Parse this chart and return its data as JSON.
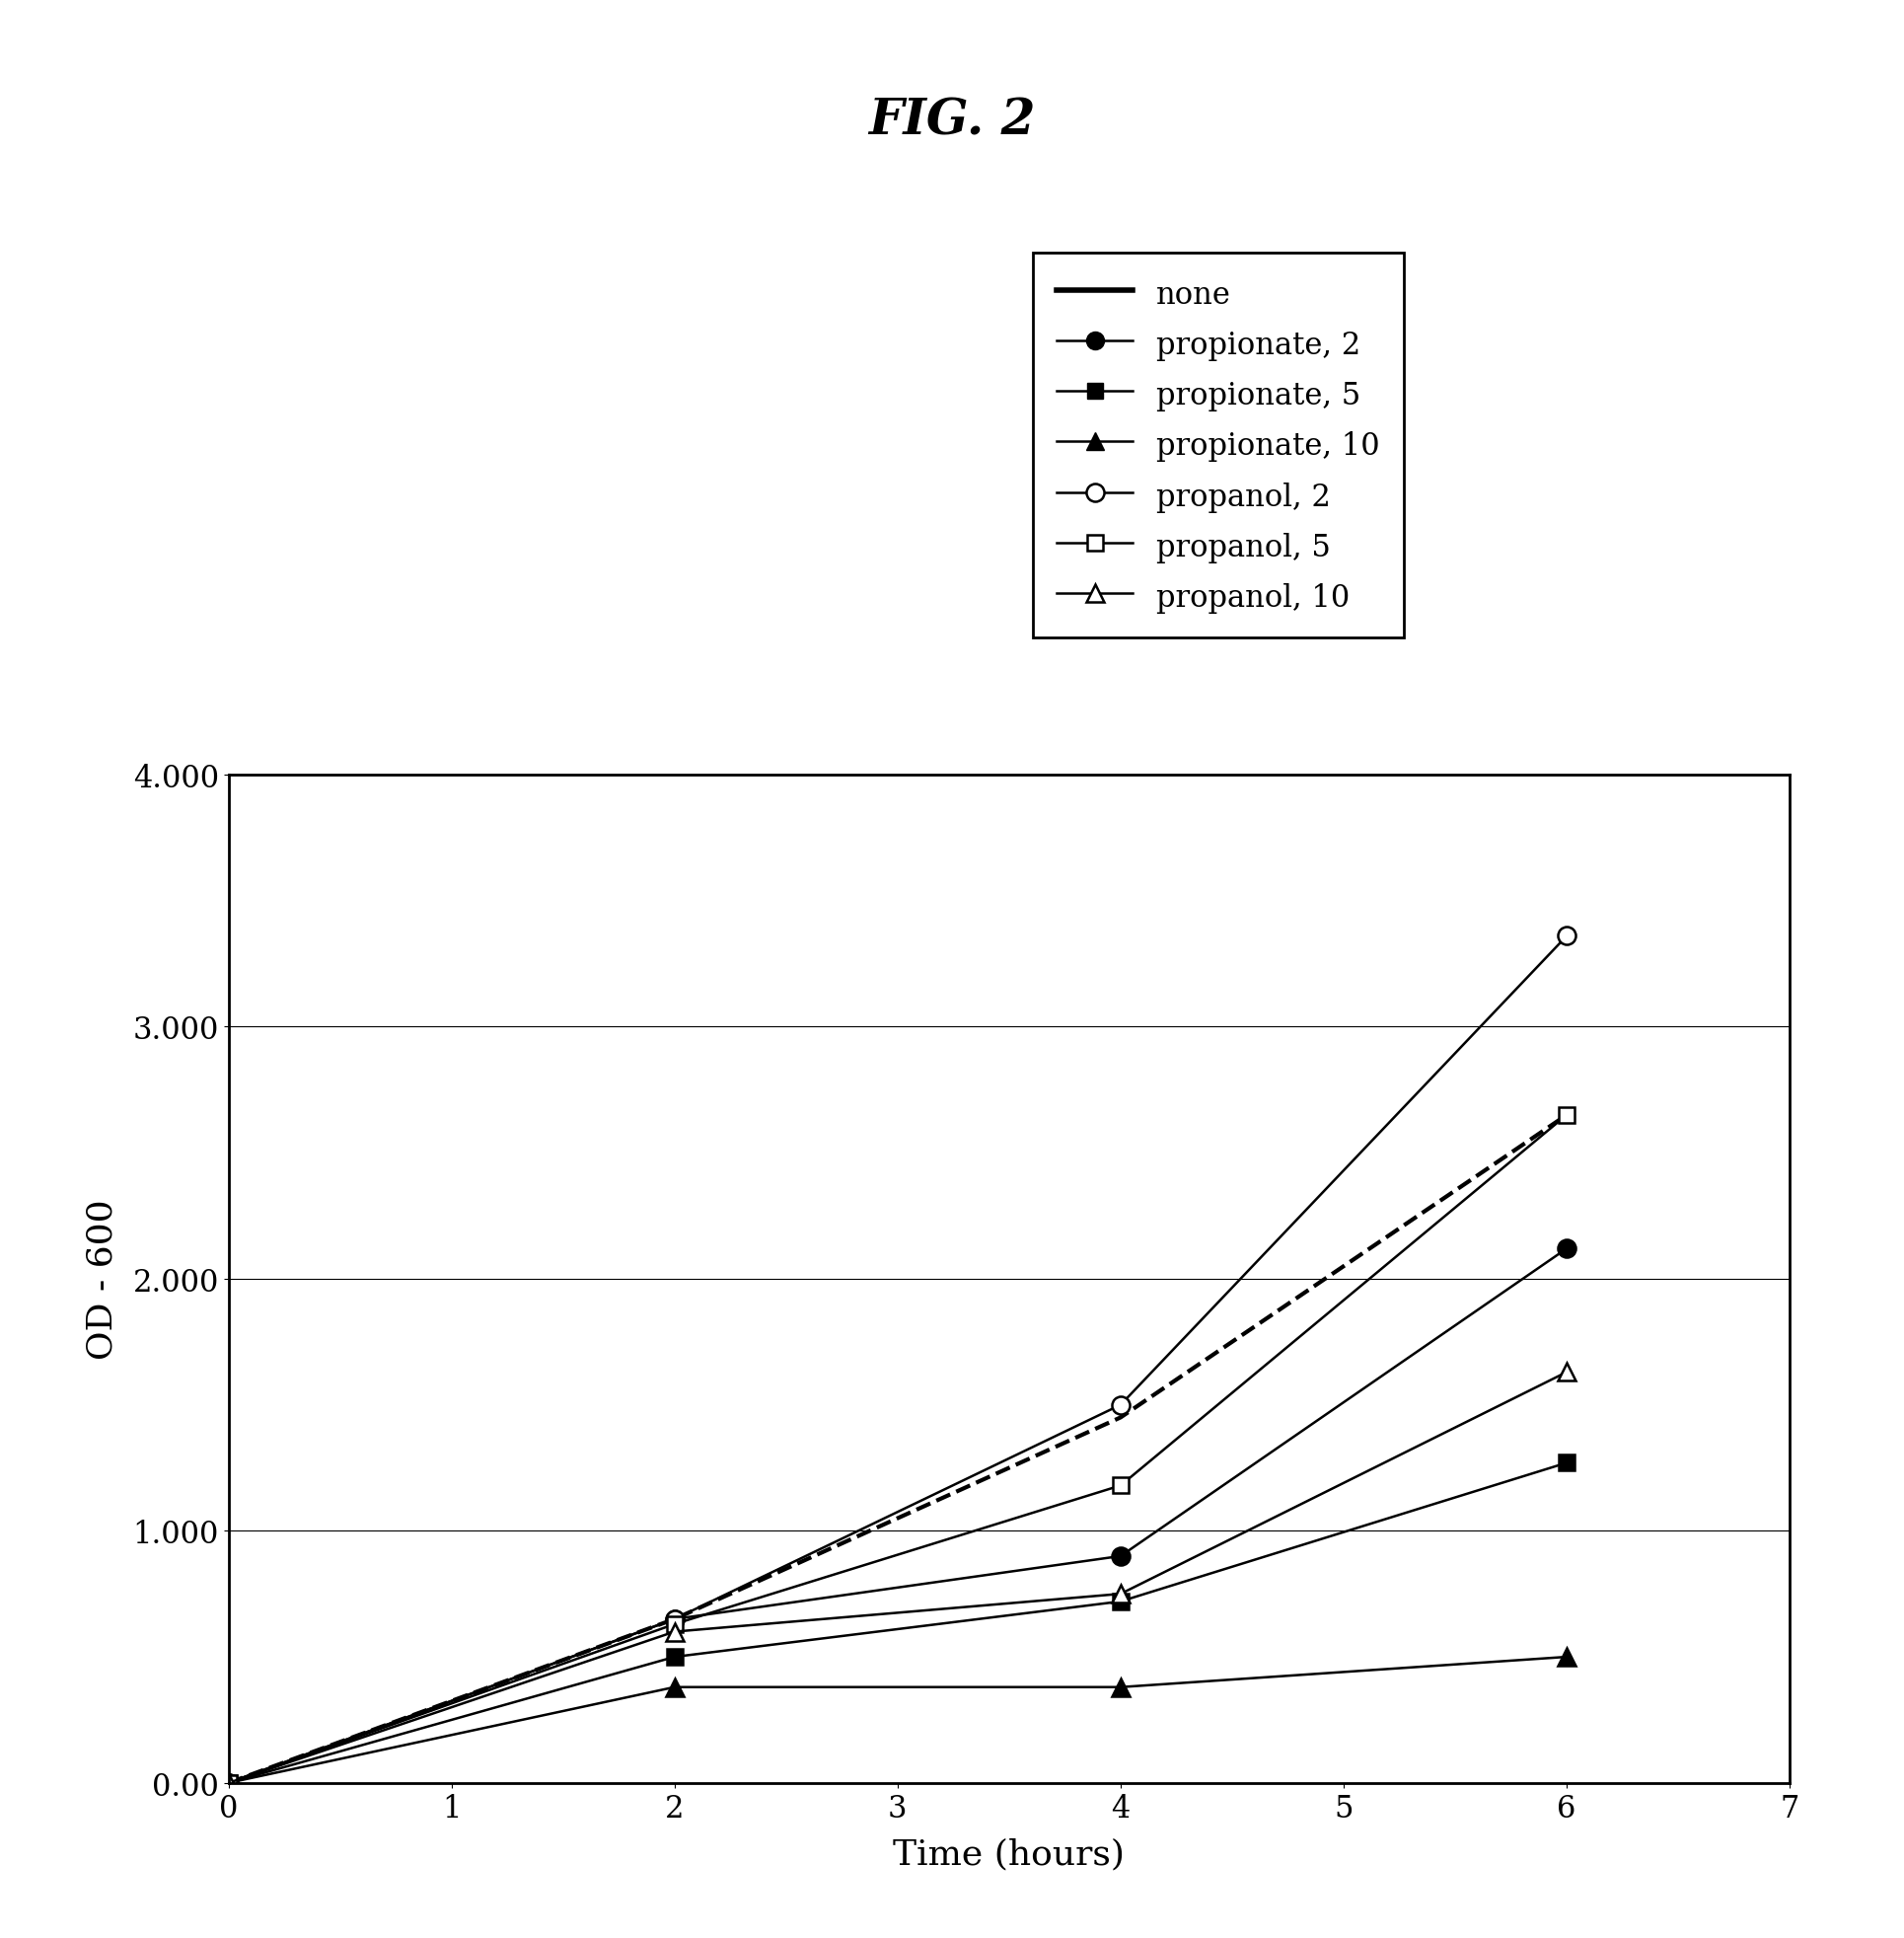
{
  "title": "FIG. 2",
  "xlabel": "Time (hours)",
  "ylabel": "OD - 600",
  "xlim": [
    0,
    7
  ],
  "ylim": [
    0,
    4.0
  ],
  "xticks": [
    0,
    1,
    2,
    3,
    4,
    5,
    6,
    7
  ],
  "yticks": [
    0.0,
    1.0,
    2.0,
    3.0,
    4.0
  ],
  "ytick_labels": [
    "0.00",
    "1.000",
    "2.000",
    "3.000",
    "4.000"
  ],
  "series": [
    {
      "label": "none",
      "x": [
        0,
        2,
        4,
        6
      ],
      "y": [
        0.0,
        0.65,
        1.45,
        2.65
      ],
      "marker": null,
      "linestyle": "--",
      "linewidth": 3.0,
      "color": "#000000",
      "markersize": 0,
      "fillstyle": "full"
    },
    {
      "label": "propionate, 2",
      "x": [
        0,
        2,
        4,
        6
      ],
      "y": [
        0.0,
        0.65,
        0.9,
        2.12
      ],
      "marker": "o",
      "linestyle": "-",
      "linewidth": 1.8,
      "color": "#000000",
      "markersize": 13,
      "fillstyle": "full"
    },
    {
      "label": "propionate, 5",
      "x": [
        0,
        2,
        4,
        6
      ],
      "y": [
        0.0,
        0.5,
        0.72,
        1.27
      ],
      "marker": "s",
      "linestyle": "-",
      "linewidth": 1.8,
      "color": "#000000",
      "markersize": 12,
      "fillstyle": "full"
    },
    {
      "label": "propionate, 10",
      "x": [
        0,
        2,
        4,
        6
      ],
      "y": [
        0.0,
        0.38,
        0.38,
        0.5
      ],
      "marker": "^",
      "linestyle": "-",
      "linewidth": 1.8,
      "color": "#000000",
      "markersize": 13,
      "fillstyle": "full"
    },
    {
      "label": "propanol, 2",
      "x": [
        0,
        2,
        4,
        6
      ],
      "y": [
        0.0,
        0.65,
        1.5,
        3.36
      ],
      "marker": "o",
      "linestyle": "-",
      "linewidth": 1.8,
      "color": "#000000",
      "markersize": 13,
      "fillstyle": "none"
    },
    {
      "label": "propanol, 5",
      "x": [
        0,
        2,
        4,
        6
      ],
      "y": [
        0.0,
        0.63,
        1.18,
        2.65
      ],
      "marker": "s",
      "linestyle": "-",
      "linewidth": 1.8,
      "color": "#000000",
      "markersize": 12,
      "fillstyle": "none"
    },
    {
      "label": "propanol, 10",
      "x": [
        0,
        2,
        4,
        6
      ],
      "y": [
        0.0,
        0.6,
        0.75,
        1.63
      ],
      "marker": "^",
      "linestyle": "-",
      "linewidth": 1.8,
      "color": "#000000",
      "markersize": 13,
      "fillstyle": "none"
    }
  ],
  "background_color": "#ffffff",
  "title_fontsize": 36,
  "axis_label_fontsize": 26,
  "tick_fontsize": 22,
  "legend_fontsize": 22
}
